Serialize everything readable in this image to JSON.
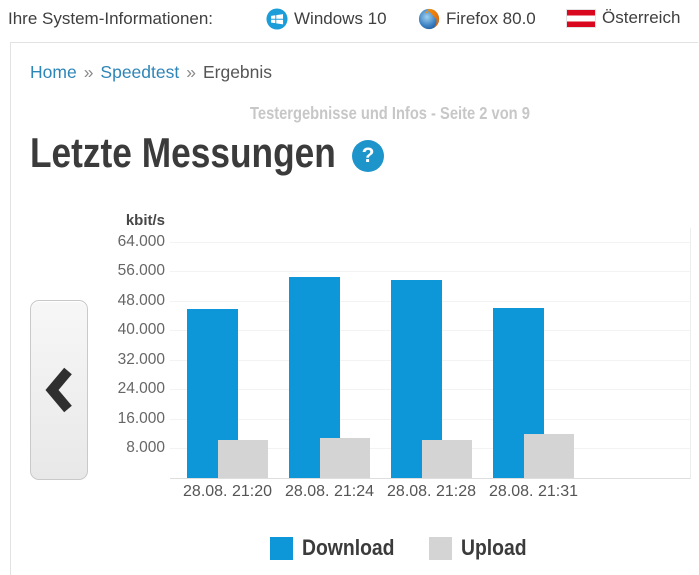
{
  "system_bar": {
    "label": "Ihre System-Informationen:",
    "items": [
      {
        "icon": "windows-icon",
        "text": "Windows 10"
      },
      {
        "icon": "firefox-icon",
        "text": "Firefox 80.0"
      },
      {
        "icon": "austria-flag-icon",
        "text": "Österreich"
      }
    ]
  },
  "breadcrumb": {
    "separator": "»",
    "items": [
      {
        "label": "Home",
        "link": true
      },
      {
        "label": "Speedtest",
        "link": true
      },
      {
        "label": "Ergebnis",
        "link": false
      }
    ]
  },
  "page": {
    "subtitle": "Testergebnisse und Infos - Seite 2 von 9",
    "title": "Letzte Messungen",
    "help_icon_glyph": "?"
  },
  "chart_data": {
    "type": "bar",
    "title": "Letzte Messungen",
    "unit_label": "kbit/s",
    "categories": [
      "28.08. 21:20",
      "28.08. 21:24",
      "28.08. 21:28",
      "28.08. 21:31"
    ],
    "series": [
      {
        "name": "Download",
        "color": "#0d97d8",
        "values": [
          46000,
          54500,
          53800,
          46300
        ]
      },
      {
        "name": "Upload",
        "color": "#d4d4d4",
        "values": [
          10200,
          11000,
          10300,
          11900
        ]
      }
    ],
    "ylim": [
      0,
      64000
    ],
    "ytick_step": 8000,
    "ytick_labels": [
      "8.000",
      "16.000",
      "24.000",
      "32.000",
      "40.000",
      "48.000",
      "56.000",
      "64.000"
    ],
    "grid": true,
    "legend_position": "bottom",
    "bar_style": "overlapped"
  },
  "colors": {
    "accent_blue": "#0d97d8",
    "upload_gray": "#d4d4d4",
    "link_blue": "#2e86b8",
    "help_circle_blue": "#1d95cb",
    "heading_text": "#3b3b3b",
    "subtitle_gray": "#c7c7c7"
  }
}
